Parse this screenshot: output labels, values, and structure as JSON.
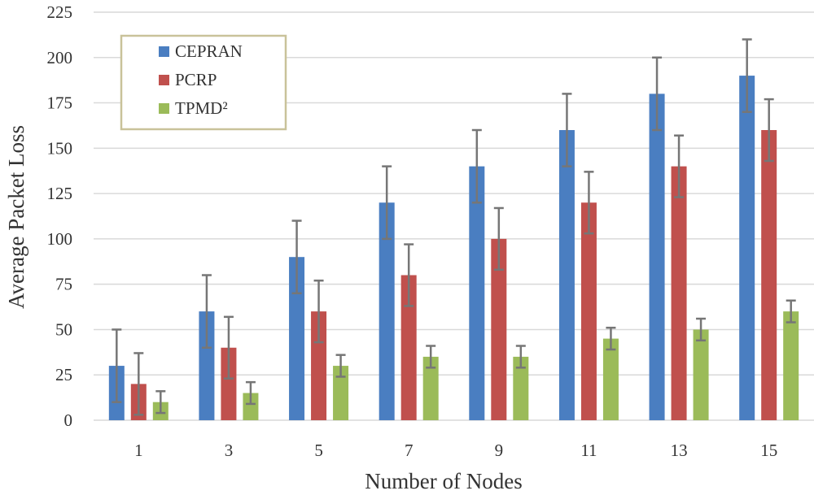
{
  "chart_data": {
    "type": "bar",
    "title": "",
    "xlabel": "Number of Nodes",
    "ylabel": "Average Packet Loss",
    "categories": [
      "1",
      "3",
      "5",
      "7",
      "9",
      "11",
      "13",
      "15"
    ],
    "ylim": [
      0,
      225
    ],
    "yticks": [
      0,
      25,
      50,
      75,
      100,
      125,
      150,
      175,
      200,
      225
    ],
    "grid": true,
    "legend_position": "top-left",
    "series": [
      {
        "name": "CEPRAN",
        "color": "#4a7ec1",
        "values": [
          30,
          60,
          90,
          120,
          140,
          160,
          180,
          190
        ],
        "error_upper": [
          50,
          80,
          110,
          140,
          160,
          180,
          200,
          210
        ],
        "error_lower": [
          10,
          40,
          70,
          100,
          120,
          140,
          160,
          170
        ]
      },
      {
        "name": "PCRP",
        "color": "#c0504d",
        "values": [
          20,
          40,
          60,
          80,
          100,
          120,
          140,
          160
        ],
        "error_upper": [
          37,
          57,
          77,
          97,
          117,
          137,
          157,
          177
        ],
        "error_lower": [
          3,
          23,
          43,
          63,
          83,
          103,
          123,
          143
        ]
      },
      {
        "name": "TPMD²",
        "color": "#9bbb59",
        "values": [
          10,
          15,
          30,
          35,
          35,
          45,
          50,
          60
        ],
        "error_upper": [
          16,
          21,
          36,
          41,
          41,
          51,
          56,
          66
        ],
        "error_lower": [
          4,
          9,
          24,
          29,
          29,
          39,
          44,
          54
        ]
      }
    ],
    "error_bar_color": "#767676",
    "grid_color": "#d9d9d9",
    "legend_border_color": "#c9c29a"
  }
}
